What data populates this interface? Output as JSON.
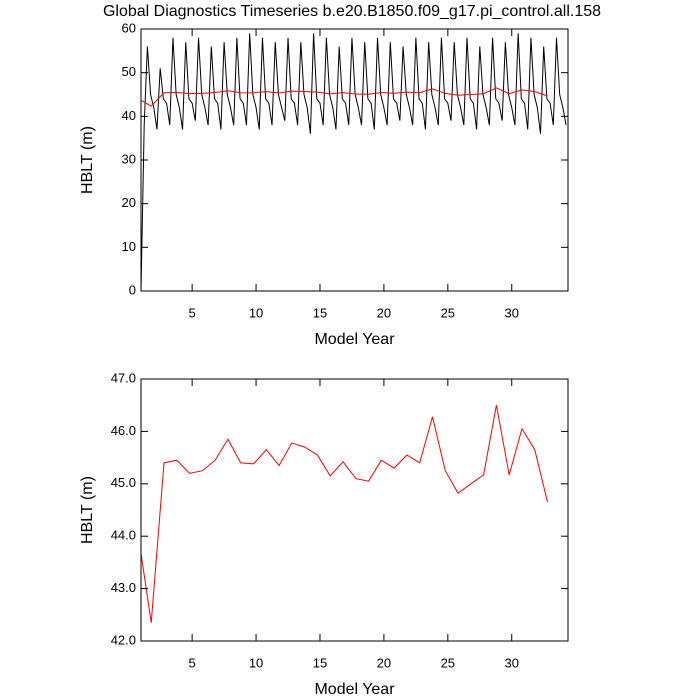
{
  "chart_data": [
    {
      "type": "line",
      "title": "Global Diagnostics Timeseries b.e20.B1850.f09_g17.pi_control.all.158",
      "xlabel": "Model Year",
      "ylabel": "HBLT (m)",
      "xlim": [
        1,
        34.4
      ],
      "xticks": [
        5,
        10,
        15,
        20,
        25,
        30
      ],
      "ylim": [
        0,
        60
      ],
      "yticks": [
        0,
        10,
        20,
        30,
        40,
        50,
        60
      ],
      "series": [
        {
          "color": "#000000",
          "x": [
            1,
            1.25,
            1.5,
            1.75,
            2,
            2.25,
            2.5,
            2.75,
            3,
            3.25,
            3.5,
            3.75,
            4,
            4.25,
            4.5,
            4.75,
            5,
            5.25,
            5.5,
            5.75,
            6,
            6.25,
            6.5,
            6.75,
            7,
            7.25,
            7.5,
            7.75,
            8,
            8.25,
            8.5,
            8.75,
            9,
            9.25,
            9.5,
            9.75,
            10,
            10.25,
            10.5,
            10.75,
            11,
            11.25,
            11.5,
            11.75,
            12,
            12.25,
            12.5,
            12.75,
            13,
            13.25,
            13.5,
            13.75,
            14,
            14.25,
            14.5,
            14.75,
            15,
            15.25,
            15.5,
            15.75,
            16,
            16.25,
            16.5,
            16.75,
            17,
            17.25,
            17.5,
            17.75,
            18,
            18.25,
            18.5,
            18.75,
            19,
            19.25,
            19.5,
            19.75,
            20,
            20.25,
            20.5,
            20.75,
            21,
            21.25,
            21.5,
            21.75,
            22,
            22.25,
            22.5,
            22.75,
            23,
            23.25,
            23.5,
            23.75,
            24,
            24.25,
            24.5,
            24.75,
            25,
            25.25,
            25.5,
            25.75,
            26,
            26.25,
            26.5,
            26.75,
            27,
            27.25,
            27.5,
            27.75,
            28,
            28.25,
            28.5,
            28.75,
            29,
            29.25,
            29.5,
            29.75,
            30,
            30.25,
            30.5,
            30.75,
            31,
            31.25,
            31.5,
            31.75,
            32,
            32.25,
            32.5,
            32.75,
            33,
            33.25,
            33.5,
            33.75,
            34,
            34.25
          ],
          "values": [
            0,
            38,
            56,
            45,
            42,
            37,
            51,
            44,
            43,
            38,
            58,
            45,
            42,
            37,
            57,
            44,
            43,
            39,
            58,
            45,
            42,
            38,
            56,
            44,
            43,
            37,
            57,
            45,
            42,
            38,
            58,
            44,
            43,
            38,
            59,
            45,
            42,
            37,
            58,
            44,
            43,
            38,
            57,
            45,
            42,
            39,
            58,
            44,
            43,
            38,
            57,
            45,
            42,
            36,
            59,
            44,
            43,
            38,
            58,
            45,
            42,
            37,
            56,
            44,
            43,
            38,
            58,
            45,
            42,
            38,
            57,
            44,
            43,
            37,
            58,
            45,
            42,
            38,
            57,
            44,
            43,
            39,
            56,
            45,
            42,
            38,
            58,
            44,
            43,
            37,
            57,
            45,
            42,
            38,
            58,
            44,
            43,
            39,
            57,
            45,
            42,
            38,
            58,
            44,
            43,
            37,
            56,
            45,
            42,
            38,
            58,
            44,
            43,
            39,
            57,
            45,
            42,
            38,
            59,
            44,
            43,
            37,
            58,
            45,
            42,
            36,
            56,
            44,
            43,
            38,
            58,
            45,
            42,
            38
          ]
        },
        {
          "color": "#ff0000",
          "x": [
            0.8,
            1.8,
            2.8,
            3.8,
            4.8,
            5.8,
            6.8,
            7.8,
            8.8,
            9.8,
            10.8,
            11.8,
            12.8,
            13.8,
            14.8,
            15.8,
            16.8,
            17.8,
            18.8,
            19.8,
            20.8,
            21.8,
            22.8,
            23.8,
            24.8,
            25.8,
            26.8,
            27.8,
            28.8,
            29.8,
            30.8,
            31.8,
            32.8
          ],
          "values": [
            44.0,
            42.35,
            45.4,
            45.45,
            45.2,
            45.25,
            45.45,
            45.85,
            45.4,
            45.38,
            45.65,
            45.35,
            45.78,
            45.7,
            45.55,
            45.15,
            45.42,
            45.1,
            45.05,
            45.45,
            45.3,
            45.55,
            45.4,
            46.28,
            45.25,
            44.82,
            45.0,
            45.17,
            46.5,
            45.17,
            46.05,
            45.65,
            44.65
          ]
        }
      ]
    },
    {
      "type": "line",
      "xlabel": "Model Year",
      "ylabel": "HBLT (m)",
      "xlim": [
        1,
        34.4
      ],
      "xticks": [
        5,
        10,
        15,
        20,
        25,
        30
      ],
      "ylim": [
        42,
        47
      ],
      "yticks": [
        {
          "value": 42,
          "label": "42.0"
        },
        {
          "value": 43,
          "label": "43.0"
        },
        {
          "value": 44,
          "label": "44.0"
        },
        {
          "value": 45,
          "label": "45.0"
        },
        {
          "value": 46,
          "label": "46.0"
        },
        {
          "value": 47,
          "label": "47.0"
        }
      ],
      "series": [
        {
          "color": "#ff0000",
          "x": [
            0.8,
            1.8,
            2.8,
            3.8,
            4.8,
            5.8,
            6.8,
            7.8,
            8.8,
            9.8,
            10.8,
            11.8,
            12.8,
            13.8,
            14.8,
            15.8,
            16.8,
            17.8,
            18.8,
            19.8,
            20.8,
            21.8,
            22.8,
            23.8,
            24.8,
            25.8,
            26.8,
            27.8,
            28.8,
            29.8,
            30.8,
            31.8,
            32.8
          ],
          "values": [
            44.0,
            42.35,
            45.4,
            45.45,
            45.2,
            45.25,
            45.45,
            45.85,
            45.4,
            45.38,
            45.65,
            45.35,
            45.78,
            45.7,
            45.55,
            45.15,
            45.42,
            45.1,
            45.05,
            45.45,
            45.3,
            45.55,
            45.4,
            46.28,
            45.25,
            44.82,
            45.0,
            45.17,
            46.5,
            45.17,
            46.05,
            45.65,
            44.65
          ]
        }
      ]
    }
  ]
}
